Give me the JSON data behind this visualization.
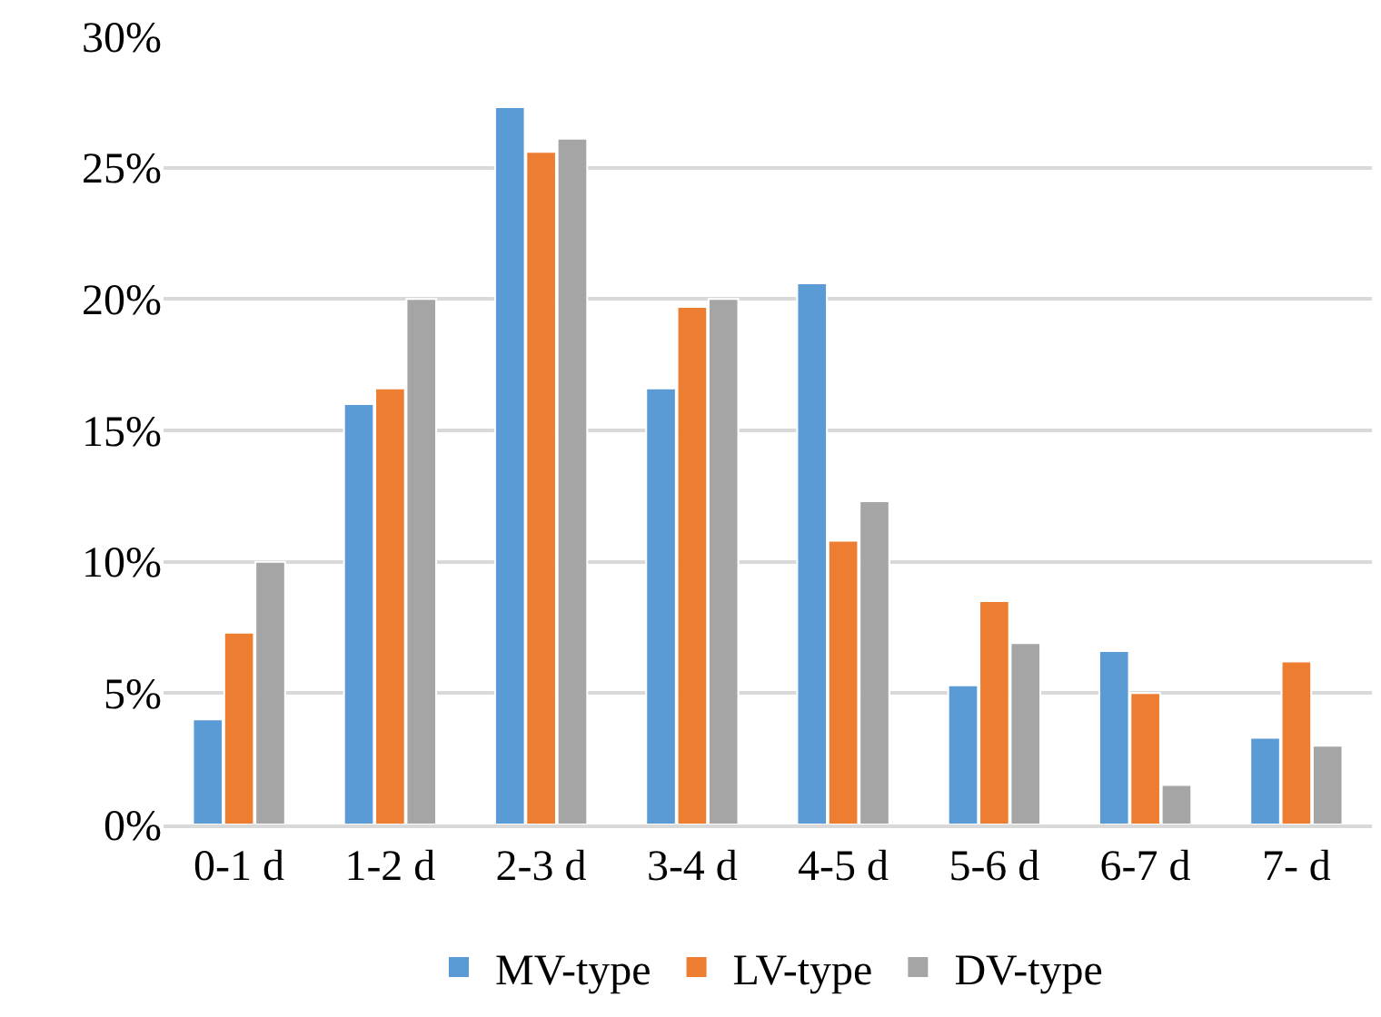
{
  "chart_data": {
    "type": "bar",
    "categories": [
      "0-1 d",
      "1-2 d",
      "2-3 d",
      "3-4 d",
      "4-5 d",
      "5-6 d",
      "6-7 d",
      "7- d"
    ],
    "series": [
      {
        "name": "MV-type",
        "color": "#5b9bd5",
        "values": [
          4.0,
          16.0,
          27.3,
          16.6,
          20.6,
          5.3,
          6.6,
          3.3
        ]
      },
      {
        "name": "LV-type",
        "color": "#ed7d31",
        "values": [
          7.3,
          16.6,
          25.6,
          19.7,
          10.8,
          8.5,
          5.0,
          6.2
        ]
      },
      {
        "name": "DV-type",
        "color": "#a5a5a5",
        "values": [
          10.0,
          20.0,
          26.1,
          20.0,
          12.3,
          6.9,
          1.5,
          3.0
        ]
      }
    ],
    "ylim": [
      0,
      30
    ],
    "yticks": [
      {
        "value": 0,
        "label": "0%"
      },
      {
        "value": 5,
        "label": "5%"
      },
      {
        "value": 10,
        "label": "10%"
      },
      {
        "value": 15,
        "label": "15%"
      },
      {
        "value": 20,
        "label": "20%"
      },
      {
        "value": 25,
        "label": "25%"
      },
      {
        "value": 30,
        "label": "30%"
      }
    ],
    "grid": "y",
    "legend": "bottom"
  }
}
